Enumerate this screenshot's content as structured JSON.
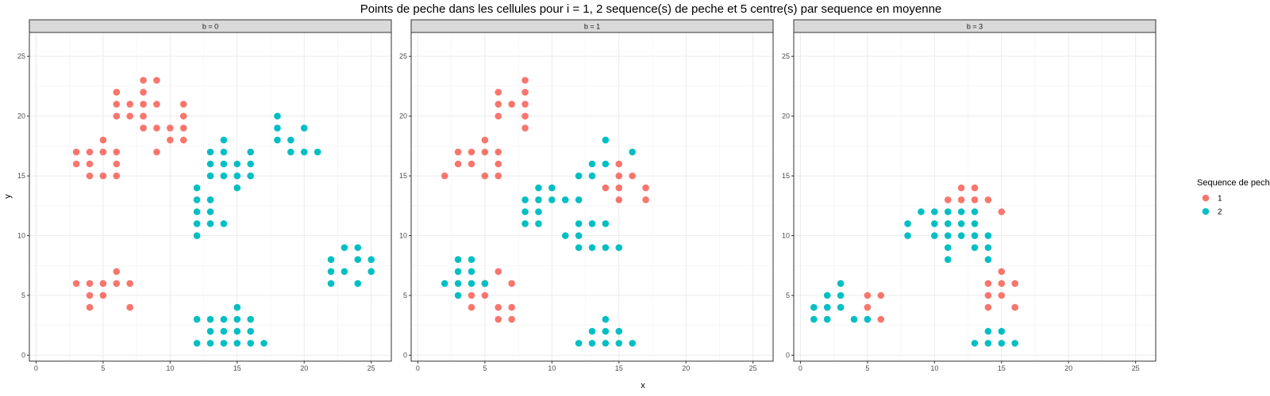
{
  "chart_data": {
    "type": "scatter",
    "title": "Points de peche dans les cellules pour i = 1, 2 sequence(s) de peche et 5 centre(s) par sequence en moyenne",
    "xlabel": "x",
    "ylabel": "y",
    "xlim": [
      -0.5,
      26.5
    ],
    "ylim": [
      -0.5,
      27.0
    ],
    "x_ticks": [
      0,
      5,
      10,
      15,
      20,
      25
    ],
    "y_ticks": [
      0,
      5,
      10,
      15,
      20,
      25
    ],
    "grid": true,
    "legend": {
      "title": "Sequence de peche",
      "position": "right",
      "entries": [
        {
          "label": "1",
          "color": "#F8766D"
        },
        {
          "label": "2",
          "color": "#00BFC4"
        }
      ]
    },
    "panels": [
      {
        "label": "b = 0",
        "series": [
          {
            "name": "1",
            "color": "#F8766D",
            "points": [
              [
                3,
                17
              ],
              [
                3,
                16
              ],
              [
                4,
                17
              ],
              [
                4,
                16
              ],
              [
                4,
                15
              ],
              [
                5,
                18
              ],
              [
                5,
                17
              ],
              [
                5,
                15
              ],
              [
                6,
                17
              ],
              [
                6,
                16
              ],
              [
                6,
                15
              ],
              [
                6,
                22
              ],
              [
                6,
                21
              ],
              [
                6,
                20
              ],
              [
                7,
                21
              ],
              [
                7,
                20
              ],
              [
                8,
                23
              ],
              [
                8,
                22
              ],
              [
                8,
                21
              ],
              [
                8,
                20
              ],
              [
                8,
                19
              ],
              [
                9,
                23
              ],
              [
                9,
                21
              ],
              [
                9,
                19
              ],
              [
                9,
                17
              ],
              [
                10,
                19
              ],
              [
                10,
                18
              ],
              [
                11,
                21
              ],
              [
                11,
                20
              ],
              [
                11,
                19
              ],
              [
                11,
                18
              ],
              [
                3,
                6
              ],
              [
                4,
                6
              ],
              [
                4,
                5
              ],
              [
                4,
                4
              ],
              [
                5,
                6
              ],
              [
                5,
                5
              ],
              [
                6,
                7
              ],
              [
                6,
                6
              ],
              [
                7,
                6
              ],
              [
                7,
                4
              ]
            ]
          },
          {
            "name": "2",
            "color": "#00BFC4",
            "points": [
              [
                12,
                14
              ],
              [
                12,
                13
              ],
              [
                12,
                12
              ],
              [
                12,
                11
              ],
              [
                12,
                10
              ],
              [
                13,
                13
              ],
              [
                13,
                12
              ],
              [
                13,
                11
              ],
              [
                14,
                11
              ],
              [
                13,
                17
              ],
              [
                13,
                16
              ],
              [
                13,
                15
              ],
              [
                14,
                18
              ],
              [
                14,
                17
              ],
              [
                14,
                16
              ],
              [
                14,
                15
              ],
              [
                15,
                16
              ],
              [
                15,
                15
              ],
              [
                15,
                14
              ],
              [
                16,
                17
              ],
              [
                16,
                16
              ],
              [
                16,
                15
              ],
              [
                18,
                20
              ],
              [
                18,
                19
              ],
              [
                18,
                18
              ],
              [
                19,
                18
              ],
              [
                19,
                17
              ],
              [
                20,
                19
              ],
              [
                20,
                17
              ],
              [
                21,
                17
              ],
              [
                22,
                8
              ],
              [
                22,
                7
              ],
              [
                22,
                6
              ],
              [
                23,
                9
              ],
              [
                23,
                7
              ],
              [
                24,
                9
              ],
              [
                24,
                8
              ],
              [
                24,
                6
              ],
              [
                25,
                8
              ],
              [
                25,
                7
              ],
              [
                12,
                3
              ],
              [
                12,
                1
              ],
              [
                13,
                3
              ],
              [
                13,
                2
              ],
              [
                13,
                1
              ],
              [
                14,
                3
              ],
              [
                14,
                2
              ],
              [
                14,
                1
              ],
              [
                15,
                4
              ],
              [
                15,
                3
              ],
              [
                15,
                2
              ],
              [
                15,
                1
              ],
              [
                16,
                3
              ],
              [
                16,
                2
              ],
              [
                16,
                1
              ],
              [
                17,
                1
              ]
            ]
          }
        ]
      },
      {
        "label": "b = 1",
        "series": [
          {
            "name": "1",
            "color": "#F8766D",
            "points": [
              [
                2,
                15
              ],
              [
                3,
                17
              ],
              [
                3,
                16
              ],
              [
                4,
                17
              ],
              [
                4,
                16
              ],
              [
                5,
                18
              ],
              [
                5,
                17
              ],
              [
                5,
                15
              ],
              [
                6,
                17
              ],
              [
                6,
                16
              ],
              [
                6,
                15
              ],
              [
                6,
                22
              ],
              [
                6,
                21
              ],
              [
                6,
                20
              ],
              [
                7,
                21
              ],
              [
                8,
                23
              ],
              [
                8,
                22
              ],
              [
                8,
                21
              ],
              [
                8,
                20
              ],
              [
                8,
                19
              ],
              [
                14,
                14
              ],
              [
                15,
                16
              ],
              [
                15,
                15
              ],
              [
                15,
                14
              ],
              [
                15,
                13
              ],
              [
                16,
                15
              ],
              [
                17,
                14
              ],
              [
                17,
                13
              ],
              [
                4,
                5
              ],
              [
                4,
                4
              ],
              [
                5,
                6
              ],
              [
                5,
                5
              ],
              [
                6,
                7
              ],
              [
                6,
                4
              ],
              [
                6,
                3
              ],
              [
                7,
                6
              ],
              [
                7,
                4
              ],
              [
                7,
                3
              ]
            ]
          },
          {
            "name": "2",
            "color": "#00BFC4",
            "points": [
              [
                8,
                13
              ],
              [
                8,
                12
              ],
              [
                8,
                11
              ],
              [
                9,
                14
              ],
              [
                9,
                13
              ],
              [
                9,
                12
              ],
              [
                9,
                11
              ],
              [
                10,
                14
              ],
              [
                10,
                13
              ],
              [
                11,
                13
              ],
              [
                12,
                15
              ],
              [
                12,
                13
              ],
              [
                13,
                16
              ],
              [
                13,
                15
              ],
              [
                14,
                18
              ],
              [
                14,
                16
              ],
              [
                16,
                17
              ],
              [
                11,
                10
              ],
              [
                12,
                11
              ],
              [
                12,
                10
              ],
              [
                12,
                9
              ],
              [
                13,
                11
              ],
              [
                13,
                9
              ],
              [
                14,
                11
              ],
              [
                14,
                9
              ],
              [
                15,
                9
              ],
              [
                2,
                6
              ],
              [
                3,
                8
              ],
              [
                3,
                7
              ],
              [
                3,
                6
              ],
              [
                3,
                5
              ],
              [
                4,
                8
              ],
              [
                4,
                7
              ],
              [
                4,
                6
              ],
              [
                5,
                6
              ],
              [
                12,
                1
              ],
              [
                13,
                2
              ],
              [
                13,
                1
              ],
              [
                14,
                3
              ],
              [
                14,
                2
              ],
              [
                14,
                1
              ],
              [
                15,
                2
              ],
              [
                15,
                1
              ],
              [
                16,
                1
              ]
            ]
          }
        ]
      },
      {
        "label": "b = 3",
        "series": [
          {
            "name": "1",
            "color": "#F8766D",
            "points": [
              [
                11,
                13
              ],
              [
                12,
                14
              ],
              [
                12,
                13
              ],
              [
                13,
                14
              ],
              [
                13,
                13
              ],
              [
                14,
                13
              ],
              [
                15,
                12
              ],
              [
                5,
                5
              ],
              [
                5,
                4
              ],
              [
                6,
                5
              ],
              [
                6,
                3
              ],
              [
                14,
                6
              ],
              [
                14,
                5
              ],
              [
                14,
                4
              ],
              [
                15,
                7
              ],
              [
                15,
                6
              ],
              [
                15,
                5
              ],
              [
                16,
                6
              ],
              [
                16,
                4
              ]
            ]
          },
          {
            "name": "2",
            "color": "#00BFC4",
            "points": [
              [
                8,
                11
              ],
              [
                8,
                10
              ],
              [
                9,
                12
              ],
              [
                10,
                12
              ],
              [
                10,
                11
              ],
              [
                10,
                10
              ],
              [
                11,
                12
              ],
              [
                11,
                11
              ],
              [
                11,
                10
              ],
              [
                11,
                9
              ],
              [
                11,
                8
              ],
              [
                12,
                12
              ],
              [
                12,
                11
              ],
              [
                12,
                10
              ],
              [
                13,
                12
              ],
              [
                13,
                11
              ],
              [
                13,
                10
              ],
              [
                13,
                9
              ],
              [
                14,
                10
              ],
              [
                14,
                9
              ],
              [
                14,
                8
              ],
              [
                1,
                4
              ],
              [
                1,
                3
              ],
              [
                2,
                5
              ],
              [
                2,
                4
              ],
              [
                2,
                3
              ],
              [
                3,
                6
              ],
              [
                3,
                5
              ],
              [
                3,
                4
              ],
              [
                4,
                3
              ],
              [
                5,
                3
              ],
              [
                13,
                1
              ],
              [
                14,
                2
              ],
              [
                14,
                1
              ],
              [
                15,
                2
              ],
              [
                15,
                1
              ],
              [
                16,
                1
              ]
            ]
          }
        ]
      }
    ]
  }
}
